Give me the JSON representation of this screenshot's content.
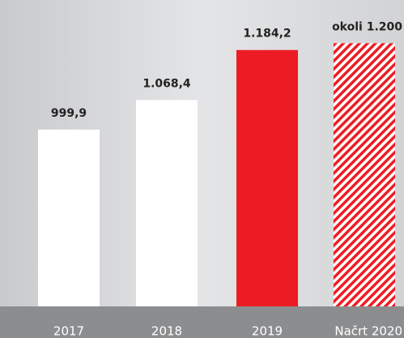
{
  "chart_data": {
    "type": "bar",
    "categories": [
      "2017",
      "2018",
      "2019",
      "Načrt 2020"
    ],
    "values": [
      999.9,
      1068.4,
      1184.2,
      1200
    ],
    "value_labels": [
      "999,9",
      "1.068,4",
      "1.184,2",
      "okoli 1.200"
    ],
    "colors": [
      "#ffffff",
      "#ffffff",
      "#ed1c24",
      "#ed1c24"
    ],
    "hatched": [
      false,
      false,
      false,
      true
    ],
    "ylim": [
      590,
      1210
    ]
  }
}
